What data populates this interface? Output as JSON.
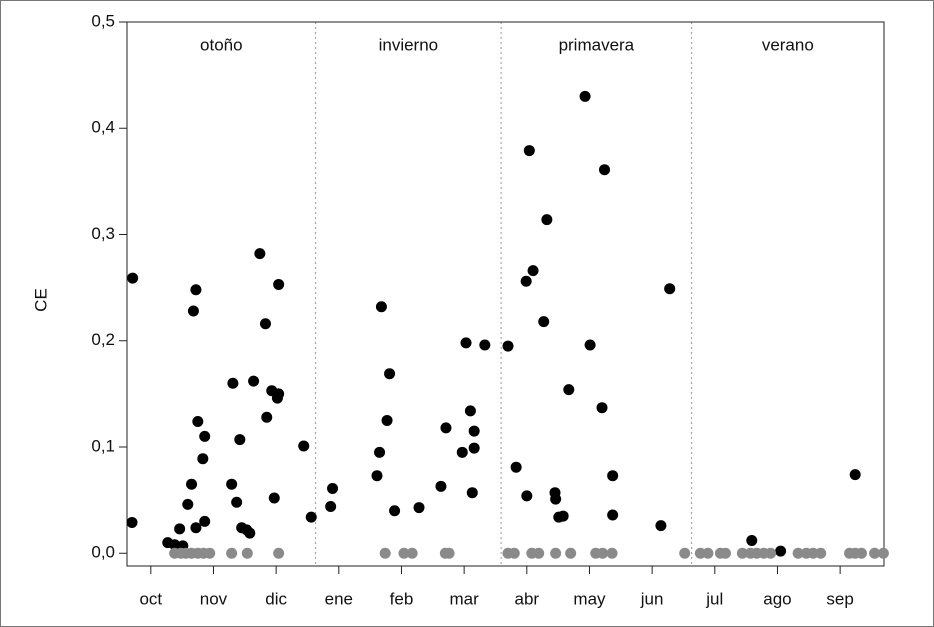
{
  "chart_data": {
    "type": "scatter",
    "ylabel": "CE",
    "xlim": [
      -0.38,
      11.7
    ],
    "ylim": [
      -0.012,
      0.5
    ],
    "xticks": [
      {
        "value": 0,
        "label": "oct"
      },
      {
        "value": 1,
        "label": "nov"
      },
      {
        "value": 2,
        "label": "dic"
      },
      {
        "value": 3,
        "label": "ene"
      },
      {
        "value": 4,
        "label": "feb"
      },
      {
        "value": 5,
        "label": "mar"
      },
      {
        "value": 6,
        "label": "abr"
      },
      {
        "value": 7,
        "label": "may"
      },
      {
        "value": 8,
        "label": "jun"
      },
      {
        "value": 9,
        "label": "jul"
      },
      {
        "value": 10,
        "label": "ago"
      },
      {
        "value": 11,
        "label": "sep"
      }
    ],
    "yticks": [
      {
        "value": 0,
        "label": "0,0"
      },
      {
        "value": 0.1,
        "label": "0,1"
      },
      {
        "value": 0.2,
        "label": "0,2"
      },
      {
        "value": 0.3,
        "label": "0,3"
      },
      {
        "value": 0.4,
        "label": "0,4"
      },
      {
        "value": 0.5,
        "label": "0,5"
      }
    ],
    "seasons": [
      {
        "label": "otoño",
        "start": -0.38,
        "end": 2.63
      },
      {
        "label": "invierno",
        "start": 2.63,
        "end": 5.59
      },
      {
        "label": "primavera",
        "start": 5.59,
        "end": 8.63
      },
      {
        "label": "verano",
        "start": 8.63,
        "end": 11.7
      }
    ],
    "series": [
      {
        "color": "#000000",
        "x": [
          -0.29,
          -0.3,
          0.27,
          0.38,
          0.51,
          0.46,
          0.59,
          0.65,
          0.72,
          0.68,
          0.72,
          0.75,
          0.83,
          0.86,
          0.86,
          1.29,
          1.31,
          1.37,
          1.42,
          1.45,
          1.53,
          1.58,
          1.64,
          1.74,
          1.83,
          1.85,
          1.93,
          2.02,
          2.04,
          2.04,
          1.97,
          2.44,
          2.56,
          2.87,
          2.9,
          3.61,
          3.65,
          3.68,
          3.77,
          3.81,
          3.89,
          4.28,
          4.63,
          4.71,
          4.97,
          5.03,
          5.1,
          5.16,
          5.16,
          5.13,
          5.33,
          5.7,
          5.83,
          5.99,
          6.0,
          6.04,
          6.1,
          6.27,
          6.32,
          6.45,
          6.46,
          6.51,
          6.58,
          6.67,
          6.93,
          7.01,
          7.2,
          7.24,
          7.37,
          7.37,
          8.14,
          8.28,
          9.59,
          10.05,
          11.24
        ],
        "values": [
          0.259,
          0.029,
          0.01,
          0.008,
          0.007,
          0.023,
          0.046,
          0.065,
          0.024,
          0.228,
          0.248,
          0.124,
          0.089,
          0.11,
          0.03,
          0.065,
          0.16,
          0.048,
          0.107,
          0.024,
          0.022,
          0.019,
          0.162,
          0.282,
          0.216,
          0.128,
          0.153,
          0.146,
          0.253,
          0.15,
          0.052,
          0.101,
          0.034,
          0.044,
          0.061,
          0.073,
          0.095,
          0.232,
          0.125,
          0.169,
          0.04,
          0.043,
          0.063,
          0.118,
          0.095,
          0.198,
          0.134,
          0.115,
          0.099,
          0.057,
          0.196,
          0.195,
          0.081,
          0.256,
          0.054,
          0.379,
          0.266,
          0.218,
          0.314,
          0.057,
          0.051,
          0.034,
          0.035,
          0.154,
          0.43,
          0.196,
          0.137,
          0.361,
          0.073,
          0.036,
          0.026,
          0.249,
          0.012,
          0.002,
          0.074
        ]
      },
      {
        "color": "#8a8a8a",
        "x": [
          0.38,
          0.48,
          0.56,
          0.65,
          0.75,
          0.84,
          0.94,
          1.29,
          1.54,
          2.04,
          3.74,
          4.04,
          4.17,
          4.7,
          4.76,
          5.7,
          5.8,
          6.08,
          6.19,
          6.46,
          6.7,
          7.1,
          7.21,
          7.36,
          8.52,
          8.77,
          8.89,
          9.09,
          9.17,
          9.44,
          9.57,
          9.67,
          9.78,
          9.89,
          10.33,
          10.46,
          10.57,
          10.69,
          11.15,
          11.24,
          11.34,
          11.55,
          11.69
        ],
        "values": [
          0,
          0,
          0,
          0,
          0,
          0,
          0,
          0,
          0,
          0,
          0,
          0,
          0,
          0,
          0,
          0,
          0,
          0,
          0,
          0,
          0,
          0,
          0,
          0,
          0,
          0,
          0,
          0,
          0,
          0,
          0,
          0,
          0,
          0,
          0,
          0,
          0,
          0,
          0,
          0,
          0,
          0,
          0
        ]
      }
    ]
  }
}
